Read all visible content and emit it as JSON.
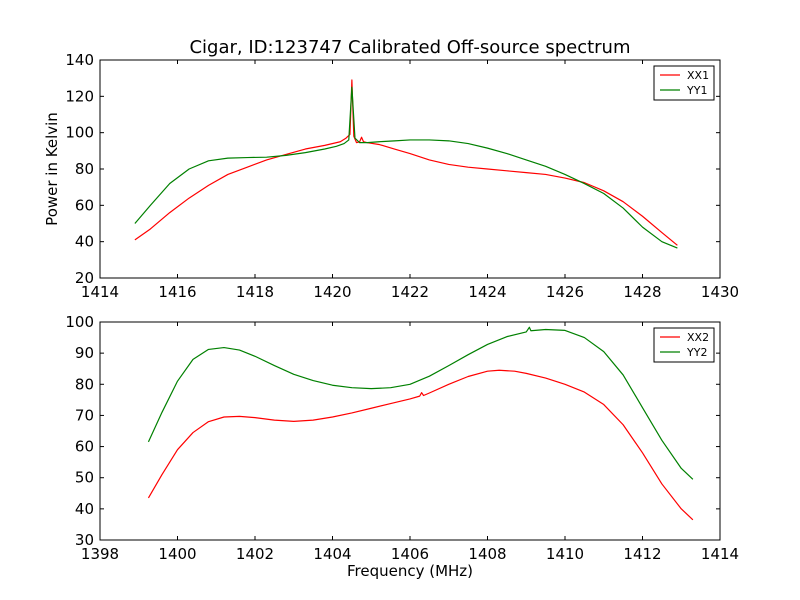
{
  "title": "Cigar, ID:123747 Calibrated Off-source spectrum",
  "chart_data": [
    {
      "type": "line",
      "ylabel": "Power in Kelvin",
      "xlabel": "",
      "xlim": [
        1414,
        1430
      ],
      "ylim": [
        20,
        140
      ],
      "xticks": [
        1414,
        1416,
        1418,
        1420,
        1422,
        1424,
        1426,
        1428,
        1430
      ],
      "yticks": [
        20,
        40,
        60,
        80,
        100,
        120,
        140
      ],
      "legend_position": "top-right",
      "series": [
        {
          "name": "XX1",
          "color": "#ff0000",
          "x": [
            1414.9,
            1415.3,
            1415.8,
            1416.3,
            1416.8,
            1417.3,
            1417.8,
            1418.3,
            1418.8,
            1419.3,
            1419.8,
            1420.2,
            1420.35,
            1420.45,
            1420.5,
            1420.55,
            1420.62,
            1420.7,
            1420.75,
            1420.8,
            1420.9,
            1421.2,
            1421.6,
            1422.0,
            1422.5,
            1423.0,
            1423.5,
            1424.0,
            1424.5,
            1425.0,
            1425.5,
            1426.0,
            1426.5,
            1427.0,
            1427.5,
            1428.0,
            1428.5,
            1428.9
          ],
          "y": [
            41,
            47,
            56,
            64,
            71,
            77,
            81,
            85,
            88,
            91,
            93,
            95,
            97,
            99,
            129,
            98,
            94.5,
            95,
            97.5,
            95,
            94.5,
            93.5,
            91,
            88.5,
            85,
            82.5,
            81,
            80,
            79,
            78,
            77,
            75,
            72.5,
            68,
            62,
            54,
            45,
            38
          ]
        },
        {
          "name": "YY1",
          "color": "#008000",
          "x": [
            1414.9,
            1415.3,
            1415.8,
            1416.3,
            1416.8,
            1417.3,
            1417.8,
            1418.3,
            1418.8,
            1419.3,
            1419.8,
            1420.1,
            1420.3,
            1420.42,
            1420.5,
            1420.58,
            1420.7,
            1420.9,
            1421.2,
            1421.6,
            1422.0,
            1422.5,
            1423.0,
            1423.5,
            1424.0,
            1424.5,
            1425.0,
            1425.5,
            1426.0,
            1426.5,
            1427.0,
            1427.5,
            1428.0,
            1428.5,
            1428.9
          ],
          "y": [
            50,
            60,
            72,
            80,
            84.5,
            86,
            86.3,
            86.5,
            87.5,
            89,
            91,
            92.5,
            94,
            96,
            125,
            97,
            94.5,
            94.5,
            95,
            95.5,
            96,
            96,
            95.5,
            94,
            91.5,
            88.5,
            85,
            81.5,
            77,
            72,
            66.5,
            58.5,
            48,
            40,
            36.5
          ]
        }
      ]
    },
    {
      "type": "line",
      "ylabel": "",
      "xlabel": "Frequency (MHz)",
      "xlim": [
        1398,
        1414
      ],
      "ylim": [
        30,
        100
      ],
      "xticks": [
        1398,
        1400,
        1402,
        1404,
        1406,
        1408,
        1410,
        1412,
        1414
      ],
      "yticks": [
        30,
        40,
        50,
        60,
        70,
        80,
        90,
        100
      ],
      "legend_position": "top-right",
      "series": [
        {
          "name": "XX2",
          "color": "#ff0000",
          "x": [
            1399.25,
            1399.6,
            1400.0,
            1400.4,
            1400.8,
            1401.2,
            1401.6,
            1402.0,
            1402.5,
            1403.0,
            1403.5,
            1404.0,
            1404.5,
            1405.0,
            1405.5,
            1406.0,
            1406.25,
            1406.3,
            1406.35,
            1406.5,
            1407.0,
            1407.5,
            1408.0,
            1408.3,
            1408.7,
            1409.0,
            1409.5,
            1410.0,
            1410.5,
            1411.0,
            1411.5,
            1412.0,
            1412.5,
            1413.0,
            1413.3
          ],
          "y": [
            43.5,
            51,
            59,
            64.5,
            68,
            69.5,
            69.7,
            69.3,
            68.5,
            68.1,
            68.5,
            69.5,
            70.8,
            72.3,
            73.8,
            75.3,
            76.2,
            77.3,
            76.4,
            77.2,
            80,
            82.5,
            84.2,
            84.5,
            84.2,
            83.5,
            82,
            80,
            77.5,
            73.5,
            67,
            58,
            48,
            40,
            36.5
          ]
        },
        {
          "name": "YY2",
          "color": "#008000",
          "x": [
            1399.25,
            1399.6,
            1400.0,
            1400.4,
            1400.8,
            1401.2,
            1401.6,
            1402.0,
            1402.5,
            1403.0,
            1403.5,
            1404.0,
            1404.5,
            1405.0,
            1405.5,
            1406.0,
            1406.5,
            1407.0,
            1407.5,
            1408.0,
            1408.5,
            1409.0,
            1409.08,
            1409.12,
            1409.5,
            1410.0,
            1410.5,
            1411.0,
            1411.5,
            1412.0,
            1412.5,
            1413.0,
            1413.3
          ],
          "y": [
            61.5,
            71,
            81,
            88,
            91.2,
            91.8,
            91,
            89,
            86,
            83.2,
            81.2,
            79.7,
            78.9,
            78.6,
            78.9,
            80,
            82.6,
            86,
            89.5,
            92.8,
            95.3,
            96.8,
            98.3,
            97.2,
            97.6,
            97.3,
            95,
            90.5,
            83,
            72.5,
            62,
            53,
            49.5
          ]
        }
      ]
    }
  ]
}
